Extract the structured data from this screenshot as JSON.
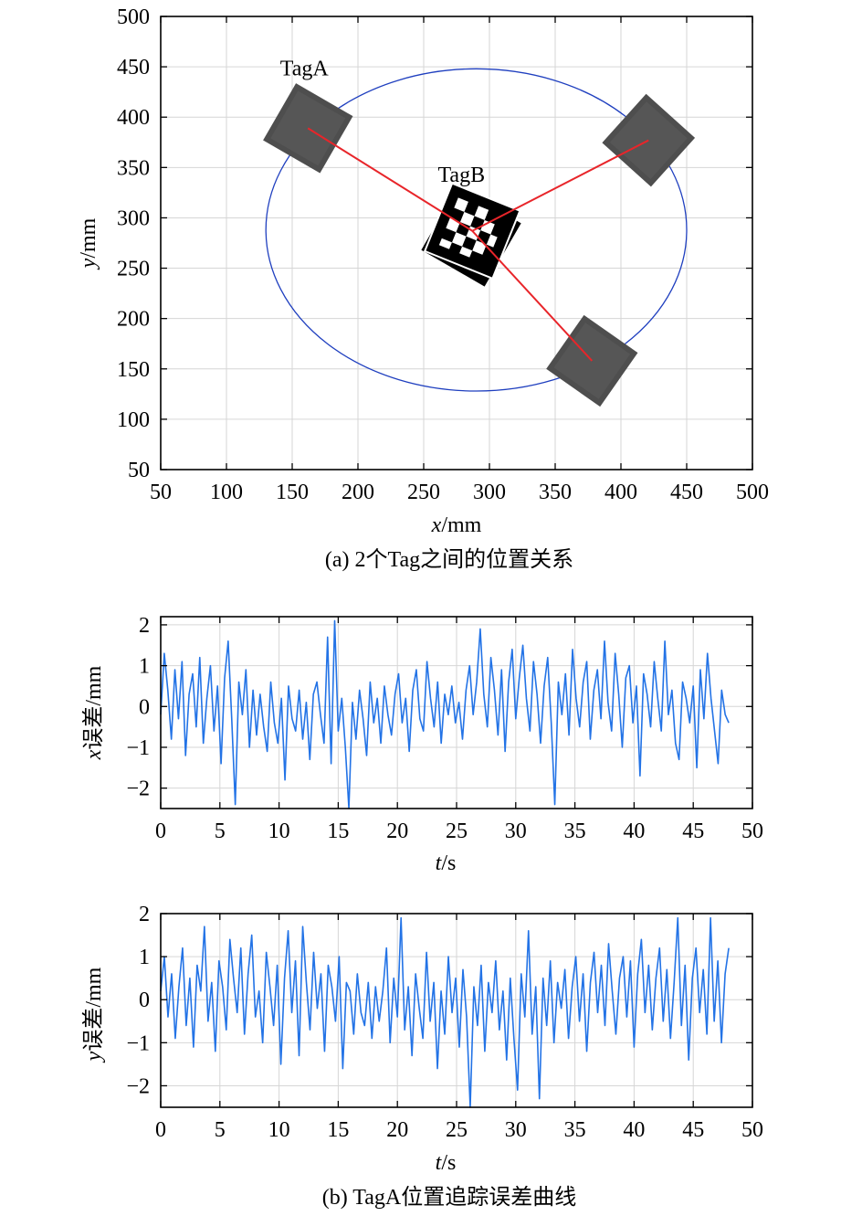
{
  "chart_data": [
    {
      "type": "scatter",
      "caption": "(a) 2个Tag之间的位置关系",
      "xlabel": {
        "var": "x",
        "unit": "/mm"
      },
      "ylabel": {
        "var": "y",
        "unit": "/mm"
      },
      "xlim": [
        50,
        500
      ],
      "ylim": [
        50,
        500
      ],
      "xticks": [
        50,
        100,
        150,
        200,
        250,
        300,
        350,
        400,
        450,
        500
      ],
      "yticks": [
        50,
        100,
        150,
        200,
        250,
        300,
        350,
        400,
        450,
        500
      ],
      "grid": true,
      "circle": {
        "cx": 290,
        "cy": 288,
        "rx": 160,
        "ry": 160,
        "color": "#1f3fbf"
      },
      "tags": [
        {
          "label": "TagA",
          "x": 162,
          "y": 389,
          "angle_deg": 30,
          "style": "gray"
        },
        {
          "label": "",
          "x": 421,
          "y": 377,
          "angle_deg": 42,
          "style": "gray"
        },
        {
          "label": "",
          "x": 378,
          "y": 158,
          "angle_deg": 35,
          "style": "gray"
        },
        {
          "label": "TagB",
          "x": 287,
          "y": 287,
          "angle_deg": 22,
          "style": "aruco"
        }
      ],
      "lines": [
        {
          "from": [
            287,
            287
          ],
          "to": [
            162,
            389
          ]
        },
        {
          "from": [
            287,
            287
          ],
          "to": [
            421,
            377
          ]
        },
        {
          "from": [
            287,
            287
          ],
          "to": [
            378,
            158
          ]
        }
      ],
      "line_color": "#e8252a"
    },
    {
      "type": "line",
      "xlabel": {
        "var": "t",
        "unit": "/s"
      },
      "ylabel": {
        "var": "x",
        "unit": "误差/mm"
      },
      "xlim": [
        0,
        50
      ],
      "ylim": [
        -2.5,
        2.2
      ],
      "xticks": [
        0,
        5,
        10,
        15,
        20,
        25,
        30,
        35,
        40,
        45,
        50
      ],
      "yticks": [
        -2,
        -1,
        0,
        1,
        2
      ],
      "grid": true,
      "series_color": "#2373e6",
      "t_end": 48,
      "values": [
        -0.2,
        1.3,
        0.4,
        -0.8,
        0.9,
        -0.3,
        1.1,
        -1.2,
        0.3,
        0.8,
        -0.5,
        1.2,
        -0.9,
        0.2,
        1.0,
        -0.6,
        0.5,
        -1.4,
        0.7,
        1.6,
        -0.3,
        -2.4,
        0.6,
        -0.2,
        0.9,
        -1.0,
        0.4,
        -0.7,
        0.3,
        -0.5,
        -1.1,
        0.6,
        -0.4,
        -0.9,
        0.2,
        -1.8,
        0.5,
        -0.3,
        -0.6,
        0.4,
        -0.8,
        0.1,
        -1.3,
        0.3,
        0.6,
        -0.2,
        -0.9,
        1.7,
        -1.4,
        2.1,
        -0.6,
        0.2,
        -1.0,
        -2.5,
        0.1,
        -0.8,
        0.4,
        -0.3,
        -1.2,
        0.6,
        -0.4,
        0.2,
        -0.9,
        0.5,
        -0.2,
        -0.7,
        0.3,
        0.8,
        -0.4,
        0.2,
        -1.1,
        0.4,
        0.9,
        -0.3,
        -0.6,
        1.1,
        0.2,
        -0.5,
        0.6,
        -0.9,
        0.3,
        -0.2,
        0.5,
        -0.4,
        0.1,
        -0.8,
        0.4,
        1.0,
        -0.2,
        0.6,
        1.9,
        0.3,
        -0.5,
        1.2,
        0.4,
        -0.7,
        0.9,
        -1.1,
        0.6,
        1.4,
        -0.3,
        0.7,
        1.5,
        0.2,
        -0.6,
        1.1,
        0.3,
        -0.9,
        0.5,
        1.2,
        -0.4,
        -2.4,
        0.6,
        -0.2,
        0.8,
        -0.7,
        1.4,
        0.2,
        -0.5,
        0.6,
        1.1,
        -0.8,
        0.4,
        0.9,
        -0.3,
        1.6,
        0.1,
        -0.6,
        1.3,
        0.3,
        -1.0,
        0.7,
        1.0,
        -0.4,
        0.5,
        -1.7,
        0.8,
        0.3,
        -0.5,
        1.1,
        0.2,
        -0.6,
        1.6,
        -0.2,
        0.4,
        -0.9,
        -1.3,
        0.6,
        0.2,
        -0.4,
        0.5,
        -1.5,
        0.9,
        -0.3,
        1.3,
        0.2,
        -0.6,
        -1.4,
        0.4,
        -0.2,
        -0.4
      ]
    },
    {
      "type": "line",
      "caption": "(b) TagA位置追踪误差曲线",
      "xlabel": {
        "var": "t",
        "unit": "/s"
      },
      "ylabel": {
        "var": "y",
        "unit": "误差/mm"
      },
      "xlim": [
        0,
        50
      ],
      "ylim": [
        -2.5,
        2.0
      ],
      "xticks": [
        0,
        5,
        10,
        15,
        20,
        25,
        30,
        35,
        40,
        45,
        50
      ],
      "yticks": [
        -2,
        -1,
        0,
        1,
        2
      ],
      "grid": true,
      "series_color": "#2373e6",
      "t_end": 48,
      "values": [
        0.2,
        1.0,
        -0.4,
        0.6,
        -0.9,
        0.3,
        1.2,
        -0.6,
        0.5,
        -1.1,
        0.8,
        0.2,
        1.7,
        -0.5,
        0.4,
        -1.2,
        0.9,
        0.3,
        -0.7,
        1.4,
        0.5,
        -0.3,
        1.2,
        -0.8,
        0.6,
        1.5,
        -0.4,
        0.2,
        -1.0,
        1.1,
        0.3,
        -0.6,
        0.8,
        -1.5,
        0.5,
        1.6,
        -0.3,
        0.9,
        -1.3,
        1.7,
        0.4,
        -0.7,
        1.1,
        -0.2,
        0.6,
        -1.2,
        0.8,
        0.3,
        -0.5,
        1.0,
        -1.6,
        0.4,
        0.2,
        -0.8,
        0.6,
        -0.3,
        -0.6,
        0.4,
        -0.9,
        0.3,
        -0.5,
        0.2,
        1.2,
        -1.0,
        0.5,
        -0.4,
        1.9,
        -0.7,
        0.3,
        -1.3,
        0.6,
        -0.2,
        -0.9,
        1.1,
        -0.5,
        0.4,
        -1.6,
        0.2,
        -0.8,
        1.0,
        -0.3,
        0.5,
        -1.1,
        0.7,
        -0.4,
        -2.5,
        0.3,
        -0.6,
        0.8,
        -1.2,
        0.4,
        -0.3,
        0.9,
        -0.7,
        0.2,
        -1.4,
        0.5,
        -0.9,
        -2.1,
        0.6,
        -0.4,
        1.6,
        -0.8,
        0.3,
        -2.3,
        0.5,
        -0.6,
        0.9,
        -1.0,
        0.4,
        -0.2,
        0.7,
        -0.9,
        0.3,
        1.0,
        -0.5,
        0.6,
        -1.2,
        0.4,
        1.1,
        -0.3,
        0.8,
        -0.6,
        1.3,
        0.2,
        -0.8,
        0.5,
        1.0,
        -0.4,
        0.9,
        -1.1,
        0.6,
        1.4,
        -0.3,
        0.8,
        -0.7,
        0.5,
        1.2,
        -0.5,
        0.7,
        -0.9,
        0.4,
        1.9,
        -0.6,
        0.8,
        -1.4,
        0.5,
        1.2,
        -0.3,
        0.7,
        -0.8,
        1.9,
        -0.5,
        0.9,
        -1.0,
        0.6,
        1.2
      ]
    }
  ]
}
